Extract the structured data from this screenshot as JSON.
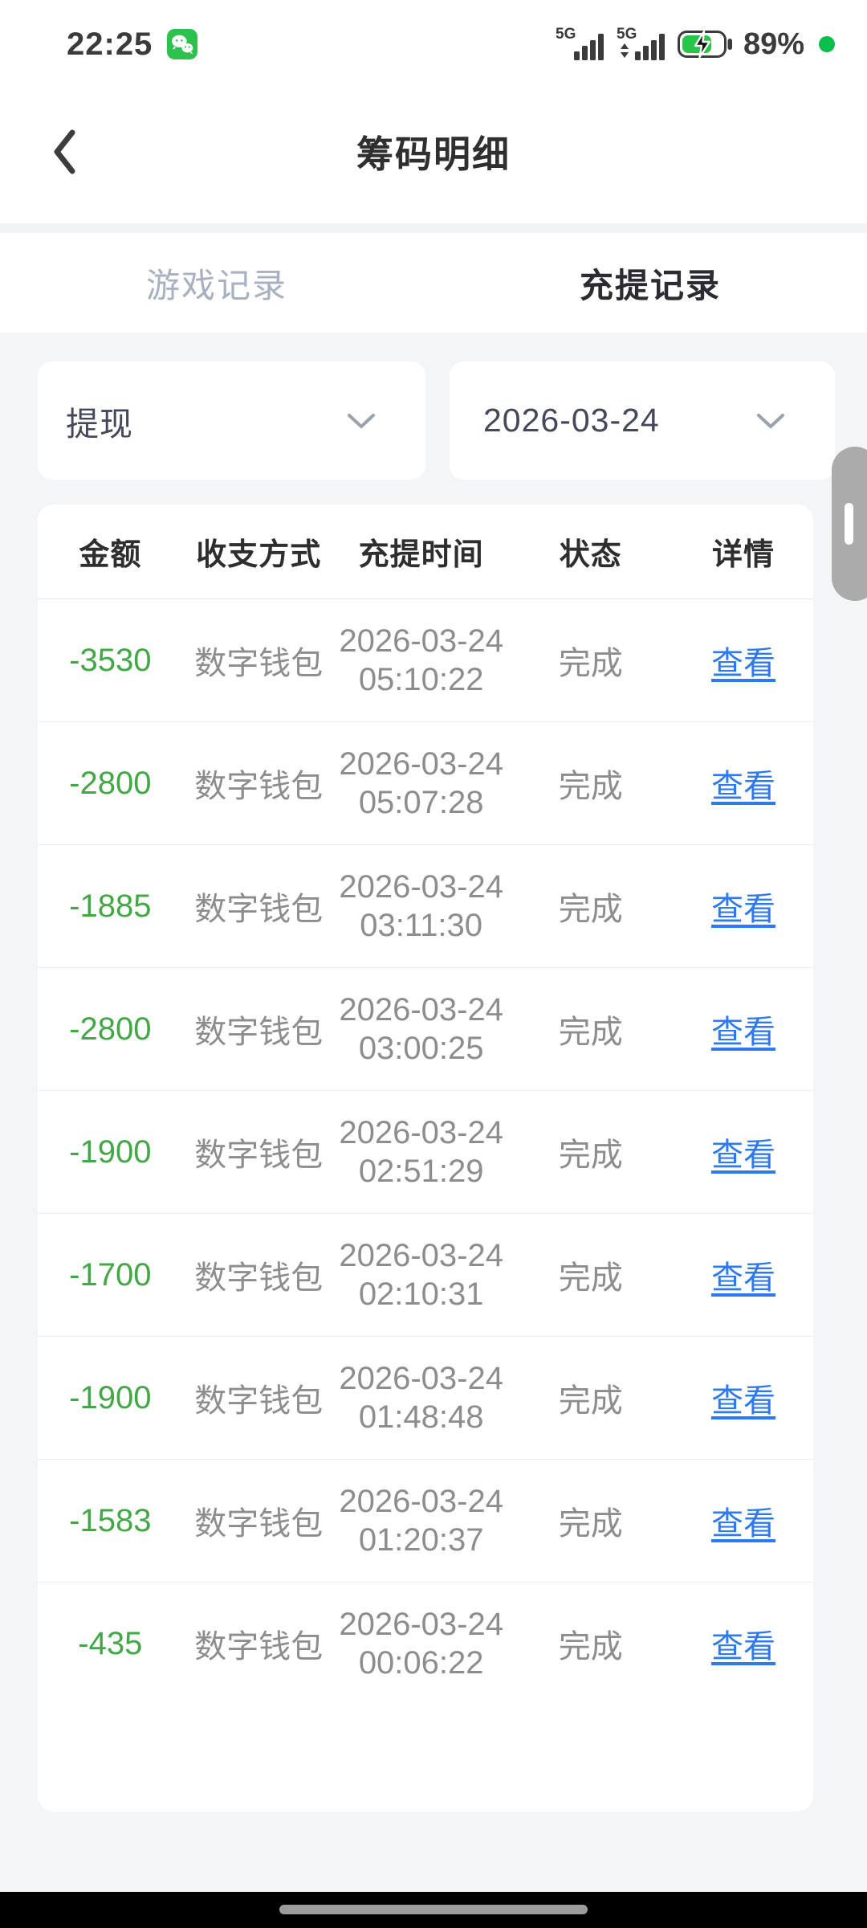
{
  "status_bar": {
    "time": "22:25",
    "network_left": "5G",
    "network_right": "5G",
    "battery_percent": "89%"
  },
  "header": {
    "title": "筹码明细"
  },
  "tabs": [
    {
      "label": "游戏记录",
      "active": false
    },
    {
      "label": "充提记录",
      "active": true
    }
  ],
  "filters": [
    {
      "value": "提现"
    },
    {
      "value": "2026-03-24"
    }
  ],
  "table": {
    "columns": [
      "金额",
      "收支方式",
      "充提时间",
      "状态",
      "详情"
    ],
    "rows": [
      {
        "amount": "-3530",
        "method": "数字钱包",
        "date": "2026-03-24",
        "time": "05:10:22",
        "status": "完成",
        "detail": "查看"
      },
      {
        "amount": "-2800",
        "method": "数字钱包",
        "date": "2026-03-24",
        "time": "05:07:28",
        "status": "完成",
        "detail": "查看"
      },
      {
        "amount": "-1885",
        "method": "数字钱包",
        "date": "2026-03-24",
        "time": "03:11:30",
        "status": "完成",
        "detail": "查看"
      },
      {
        "amount": "-2800",
        "method": "数字钱包",
        "date": "2026-03-24",
        "time": "03:00:25",
        "status": "完成",
        "detail": "查看"
      },
      {
        "amount": "-1900",
        "method": "数字钱包",
        "date": "2026-03-24",
        "time": "02:51:29",
        "status": "完成",
        "detail": "查看"
      },
      {
        "amount": "-1700",
        "method": "数字钱包",
        "date": "2026-03-24",
        "time": "02:10:31",
        "status": "完成",
        "detail": "查看"
      },
      {
        "amount": "-1900",
        "method": "数字钱包",
        "date": "2026-03-24",
        "time": "01:48:48",
        "status": "完成",
        "detail": "查看"
      },
      {
        "amount": "-1583",
        "method": "数字钱包",
        "date": "2026-03-24",
        "time": "01:20:37",
        "status": "完成",
        "detail": "查看"
      },
      {
        "amount": "-435",
        "method": "数字钱包",
        "date": "2026-03-24",
        "time": "00:06:22",
        "status": "完成",
        "detail": "查看"
      }
    ]
  },
  "colors": {
    "amount_green": "#42a845",
    "link_blue": "#2e79f0",
    "wechat_green": "#2dc24e",
    "inactive_tab": "#a7b1c2",
    "battery_green": "#26c648"
  }
}
